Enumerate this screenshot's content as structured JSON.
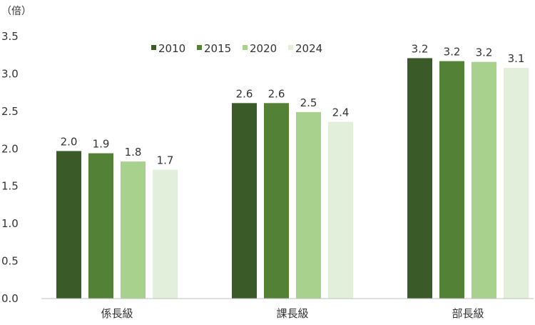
{
  "chart_data": {
    "type": "bar",
    "unit_label": "（倍）",
    "categories": [
      "係長級",
      "課長級",
      "部長級"
    ],
    "series": [
      {
        "name": "2010",
        "color": "#3a5a28",
        "values": [
          1.97,
          2.61,
          3.21
        ],
        "labels": [
          "2.0",
          "2.6",
          "3.2"
        ]
      },
      {
        "name": "2015",
        "color": "#538135",
        "values": [
          1.94,
          2.61,
          3.17
        ],
        "labels": [
          "1.9",
          "2.6",
          "3.2"
        ]
      },
      {
        "name": "2020",
        "color": "#a9d18e",
        "values": [
          1.83,
          2.49,
          3.16
        ],
        "labels": [
          "1.8",
          "2.5",
          "3.2"
        ]
      },
      {
        "name": "2024",
        "color": "#e2efda",
        "values": [
          1.72,
          2.36,
          3.08
        ],
        "labels": [
          "1.7",
          "2.4",
          "3.1"
        ]
      }
    ],
    "ylim": [
      0,
      3.5
    ],
    "yticks": [
      "0.0",
      "0.5",
      "1.0",
      "1.5",
      "2.0",
      "2.5",
      "3.0",
      "3.5"
    ],
    "legend_position": "top-center",
    "grid": false
  }
}
